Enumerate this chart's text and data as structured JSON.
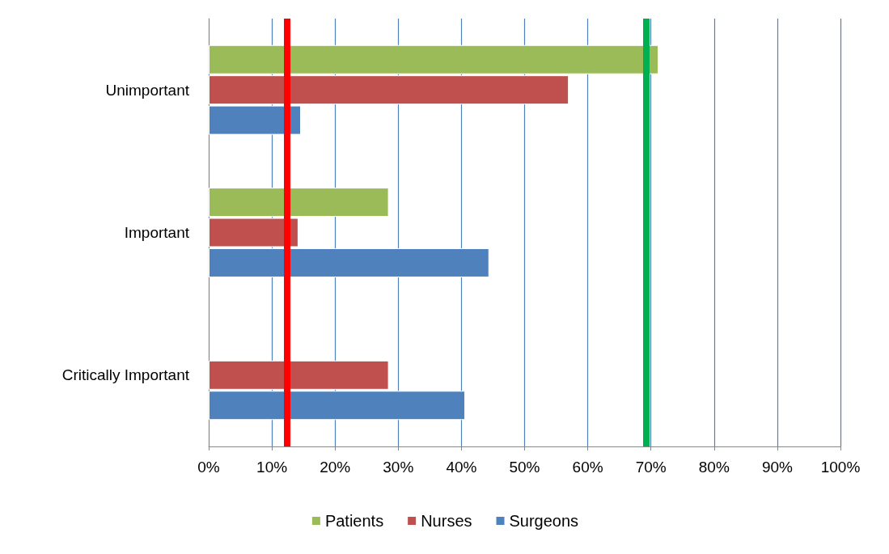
{
  "chart_data": {
    "type": "bar",
    "orientation": "horizontal",
    "categories": [
      "Unimportant",
      "Important",
      "Critically Important"
    ],
    "series": [
      {
        "name": "Patients",
        "color": "#9bbb59",
        "values": [
          71.2,
          28.5,
          null
        ]
      },
      {
        "name": "Nurses",
        "color": "#c0504d",
        "values": [
          57,
          14.2,
          28.5
        ]
      },
      {
        "name": "Surgeons",
        "color": "#4f81bd",
        "values": [
          14.6,
          44.4,
          40.6
        ]
      }
    ],
    "xlim": [
      0,
      100
    ],
    "xticks": [
      {
        "value": 0,
        "label": "0%"
      },
      {
        "value": 10,
        "label": "10%"
      },
      {
        "value": 20,
        "label": "20%"
      },
      {
        "value": 30,
        "label": "30%"
      },
      {
        "value": 40,
        "label": "40%"
      },
      {
        "value": 50,
        "label": "50%"
      },
      {
        "value": 60,
        "label": "60%"
      },
      {
        "value": 70,
        "label": "70%"
      },
      {
        "value": 80,
        "label": "80%"
      },
      {
        "value": 90,
        "label": "90%"
      },
      {
        "value": 100,
        "label": "100%"
      }
    ],
    "ref_lines": [
      {
        "axis": "x",
        "value": 12.4,
        "color": "#ff0000"
      },
      {
        "axis": "x",
        "value": 69.3,
        "color": "#00b050"
      }
    ],
    "grid": "x",
    "legend": "bottom"
  }
}
